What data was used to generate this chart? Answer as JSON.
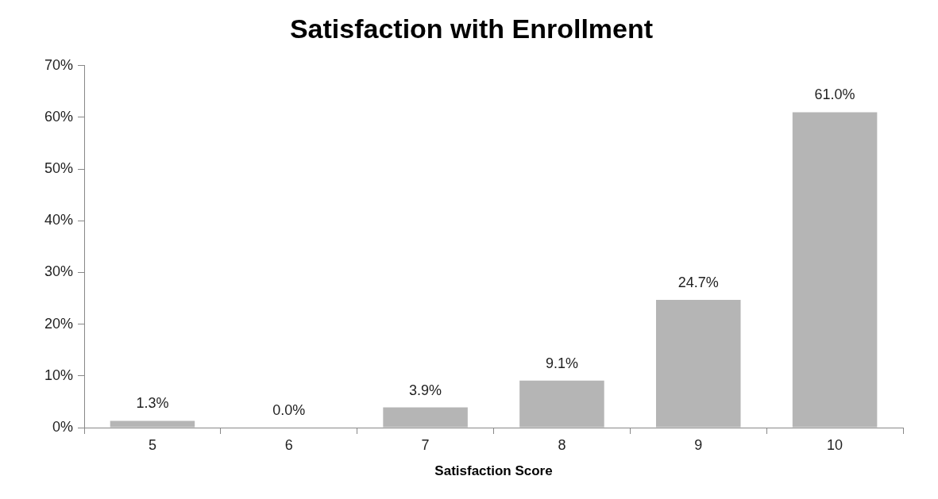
{
  "chart_data": {
    "type": "bar",
    "title": "Satisfaction with Enrollment",
    "xlabel": "Satisfaction Score",
    "categories": [
      "5",
      "6",
      "7",
      "8",
      "9",
      "10"
    ],
    "values": [
      1.3,
      0.0,
      3.9,
      9.1,
      24.7,
      61.0
    ],
    "value_labels": [
      "1.3%",
      "0.0%",
      "3.9%",
      "9.1%",
      "24.7%",
      "61.0%"
    ],
    "color": "#b5b5b5",
    "ylim": [
      0,
      70
    ],
    "yticks": [
      {
        "value": 0,
        "label": "0%"
      },
      {
        "value": 10,
        "label": "10%"
      },
      {
        "value": 20,
        "label": "20%"
      },
      {
        "value": 30,
        "label": "30%"
      },
      {
        "value": 40,
        "label": "40%"
      },
      {
        "value": 50,
        "label": "50%"
      },
      {
        "value": 60,
        "label": "60%"
      },
      {
        "value": 70,
        "label": "70%"
      }
    ],
    "grid": false,
    "legend": false
  }
}
